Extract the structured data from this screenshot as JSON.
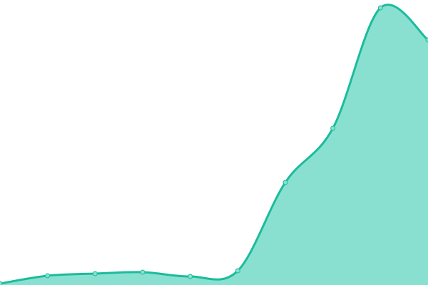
{
  "chart_data": {
    "type": "area",
    "x": [
      0,
      1,
      2,
      3,
      4,
      5,
      6,
      7,
      8,
      9
    ],
    "values": [
      2,
      13,
      16,
      18,
      12,
      20,
      144,
      220,
      389,
      344
    ],
    "ylim": [
      0,
      400
    ],
    "xlim": [
      0,
      9
    ],
    "grid": false,
    "axes_visible": false,
    "smooth": true,
    "markers": true,
    "colors": {
      "line": "#1abc9c",
      "fill": "#8ae0d0",
      "marker": "#8ae0d0"
    }
  }
}
